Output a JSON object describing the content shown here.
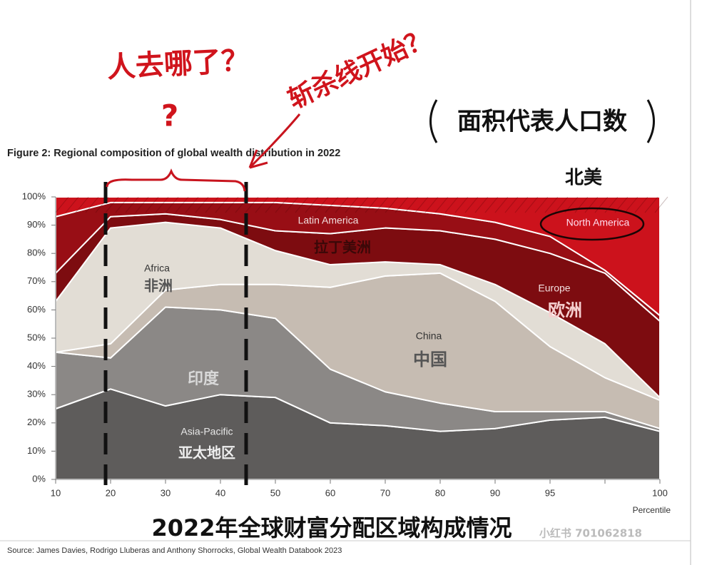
{
  "chart_data": {
    "type": "stacked_area",
    "title": "Figure 2: Regional composition of global wealth distribution in 2022",
    "x_label": "Percentile",
    "source": "Source: James Davies, Rodrigo Lluberas and Anthony Shorrocks, Global Wealth Databook 2023",
    "categories": [
      "10",
      "20",
      "30",
      "40",
      "50",
      "60",
      "70",
      "80",
      "90",
      "95",
      null,
      "100"
    ],
    "series": [
      {
        "name": "Asia-Pacific",
        "color": "#5e5c5b",
        "values": [
          25,
          32,
          26,
          30,
          29,
          20,
          19,
          17,
          18,
          21,
          22,
          17
        ]
      },
      {
        "name": "印度",
        "color": "#8b8886",
        "values": [
          20,
          11,
          35,
          30,
          28,
          19,
          12,
          10,
          6,
          3,
          2,
          1
        ]
      },
      {
        "name": "China",
        "color": "#c6bcb2",
        "values": [
          0,
          5,
          6,
          9,
          12,
          29,
          41,
          46,
          39,
          23,
          12,
          10
        ]
      },
      {
        "name": "Africa",
        "color": "#e2ddd5",
        "values": [
          18,
          41,
          24,
          20,
          12,
          8,
          5,
          3,
          6,
          12,
          12,
          1
        ]
      },
      {
        "name": "Europe",
        "color": "#7d0c10",
        "values": [
          10,
          4,
          3,
          3,
          7,
          11,
          12,
          12,
          16,
          21,
          25,
          27
        ]
      },
      {
        "name": "Latin America",
        "color": "#980e15",
        "values": [
          20,
          5,
          4,
          6,
          10,
          10,
          7,
          6,
          6,
          6,
          1,
          2
        ]
      },
      {
        "name": "North America",
        "color": "#cc121c",
        "values": [
          7,
          2,
          2,
          2,
          2,
          3,
          4,
          6,
          9,
          14,
          26,
          42
        ]
      }
    ],
    "ylim": [
      0,
      100
    ],
    "yticks": [
      {
        "value": 0,
        "label": "0%"
      },
      {
        "value": 10,
        "label": "10%"
      },
      {
        "value": 20,
        "label": "20%"
      },
      {
        "value": 30,
        "label": "30%"
      },
      {
        "value": 40,
        "label": "40%"
      },
      {
        "value": 50,
        "label": "50%"
      },
      {
        "value": 60,
        "label": "60%"
      },
      {
        "value": 70,
        "label": "70%"
      },
      {
        "value": 80,
        "label": "80%"
      },
      {
        "value": 90,
        "label": "90%"
      },
      {
        "value": 100,
        "label": "100%"
      }
    ],
    "annotations": [
      "人去哪了？",
      "?",
      "斩杀线开始？",
      "面积代表人口数",
      "北美",
      "拉丁美洲",
      "非洲",
      "中国",
      "欧洲",
      "亚太地区",
      "2022年全球财富分配区域构成情况",
      "小红书 701062818"
    ]
  }
}
